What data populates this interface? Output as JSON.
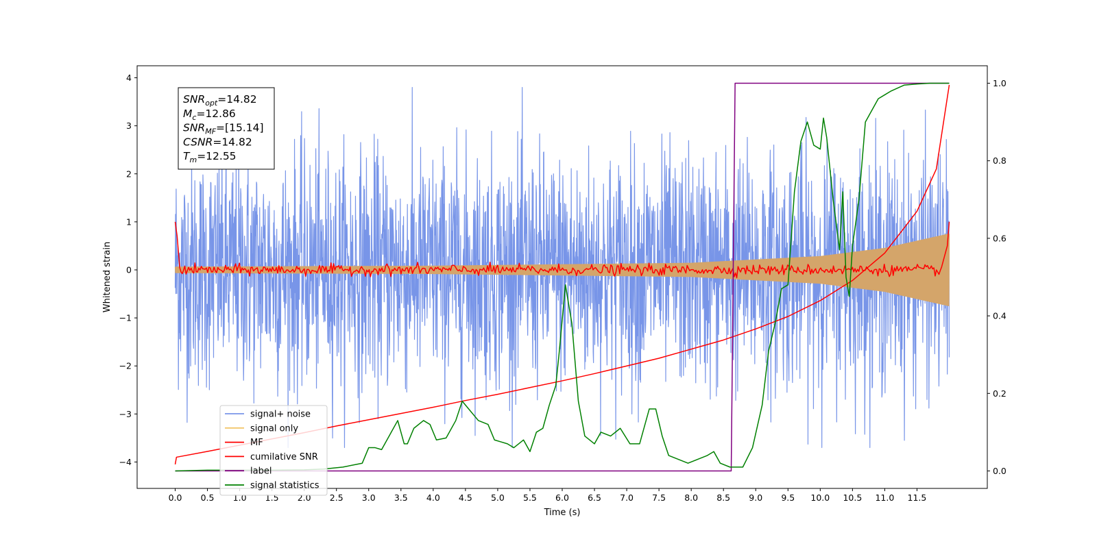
{
  "chart_data": {
    "type": "line",
    "title": "",
    "xlabel": "Time (s)",
    "ylabel": "Whitened strain",
    "y2label": "",
    "xlim": [
      -0.59,
      12.59
    ],
    "ylim": [
      -4.55,
      4.25
    ],
    "y2lim": [
      -0.045,
      1.045
    ],
    "x_ticks": [
      0.0,
      0.5,
      1.0,
      1.5,
      2.0,
      2.5,
      3.0,
      3.5,
      4.0,
      4.5,
      5.0,
      5.5,
      6.0,
      6.5,
      7.0,
      7.5,
      8.0,
      8.5,
      9.0,
      9.5,
      10.0,
      10.5,
      11.0,
      11.5
    ],
    "x_tick_labels": [
      "0.0",
      "0.5",
      "1.0",
      "1.5",
      "2.0",
      "2.5",
      "3.0",
      "3.5",
      "4.0",
      "4.5",
      "5.0",
      "5.5",
      "6.0",
      "6.5",
      "7.0",
      "7.5",
      "8.0",
      "8.5",
      "9.0",
      "9.5",
      "10.0",
      "10.5",
      "11.0",
      "11.5"
    ],
    "y_ticks": [
      4,
      3,
      2,
      1,
      0,
      -1,
      -2,
      -3,
      -4
    ],
    "y_tick_labels": [
      "4",
      "3",
      "2",
      "1",
      "0",
      "−1",
      "−2",
      "−3",
      "−4"
    ],
    "y2_ticks": [
      1.0,
      0.8,
      0.6,
      0.4,
      0.2,
      0.0
    ],
    "y2_tick_labels": [
      "1.0",
      "0.8",
      "0.6",
      "0.4",
      "0.2",
      "0.0"
    ],
    "grid": false,
    "legend_position": "bottom-left",
    "legend": [
      {
        "label": "signal+ noise",
        "color": "#7895e8"
      },
      {
        "label": "signal only",
        "color": "#f2c66a"
      },
      {
        "label": "MF",
        "color": "#ff0000"
      },
      {
        "label": "cumilative SNR",
        "color": "#ff0000"
      },
      {
        "label": "label",
        "color": "#800080"
      },
      {
        "label": "signal statistics",
        "color": "#008000"
      }
    ],
    "annotation": [
      {
        "base": "SNR",
        "sub": "opt",
        "rest": "=14.82"
      },
      {
        "base": "M",
        "sub": "c",
        "rest": "=12.86"
      },
      {
        "base": "SNR",
        "sub": "MF",
        "rest": "=[15.14]"
      },
      {
        "base": "CSNR",
        "sub": "",
        "rest": "=14.82"
      },
      {
        "base": "T",
        "sub": "m",
        "rest": "=12.55"
      }
    ],
    "series": [
      {
        "name": "signal+ noise",
        "axis": "left",
        "color": "#7895e8",
        "generated": "noise",
        "x_range": [
          0.0,
          12.0
        ],
        "approx_envelope": [
          -2.2,
          2.2
        ],
        "approx_extremes": [
          -3.7,
          3.8
        ]
      },
      {
        "name": "signal only",
        "axis": "left",
        "color": "#d4a56a",
        "generated": "chirp",
        "x_range": [
          0.0,
          12.0
        ],
        "amplitude_points": [
          [
            0.0,
            0.06
          ],
          [
            4.0,
            0.08
          ],
          [
            8.0,
            0.14
          ],
          [
            10.0,
            0.28
          ],
          [
            11.0,
            0.45
          ],
          [
            12.0,
            0.75
          ]
        ]
      },
      {
        "name": "MF",
        "axis": "left",
        "color": "#ff0000",
        "generated": "mf",
        "x_range": [
          0.0,
          12.0
        ],
        "approx_amplitude": 0.09,
        "start_value": 1.0,
        "end_value": 1.0
      },
      {
        "name": "cumilative SNR",
        "axis": "left",
        "color": "#ff0000",
        "points": [
          [
            0.0,
            -4.05
          ],
          [
            0.02,
            -3.9
          ],
          [
            0.5,
            -3.78
          ],
          [
            1.0,
            -3.65
          ],
          [
            1.5,
            -3.52
          ],
          [
            2.0,
            -3.39
          ],
          [
            2.5,
            -3.25
          ],
          [
            3.0,
            -3.12
          ],
          [
            3.5,
            -2.99
          ],
          [
            4.0,
            -2.86
          ],
          [
            4.5,
            -2.72
          ],
          [
            5.0,
            -2.59
          ],
          [
            5.5,
            -2.45
          ],
          [
            6.0,
            -2.31
          ],
          [
            6.5,
            -2.16
          ],
          [
            7.0,
            -2.0
          ],
          [
            7.5,
            -1.84
          ],
          [
            8.0,
            -1.65
          ],
          [
            8.5,
            -1.46
          ],
          [
            9.0,
            -1.23
          ],
          [
            9.5,
            -0.97
          ],
          [
            10.0,
            -0.64
          ],
          [
            10.5,
            -0.22
          ],
          [
            11.0,
            0.35
          ],
          [
            11.5,
            1.22
          ],
          [
            11.8,
            2.1
          ],
          [
            12.0,
            3.85
          ]
        ]
      },
      {
        "name": "label",
        "axis": "right",
        "color": "#800080",
        "points": [
          [
            0.0,
            0.0
          ],
          [
            8.62,
            0.0
          ],
          [
            8.68,
            1.0
          ],
          [
            12.0,
            1.0
          ]
        ]
      },
      {
        "name": "signal statistics",
        "axis": "right",
        "color": "#008000",
        "points": [
          [
            0.0,
            0.0
          ],
          [
            0.5,
            0.002
          ],
          [
            1.0,
            0.002
          ],
          [
            1.5,
            0.002
          ],
          [
            2.0,
            0.003
          ],
          [
            2.3,
            0.005
          ],
          [
            2.6,
            0.01
          ],
          [
            2.9,
            0.02
          ],
          [
            3.0,
            0.06
          ],
          [
            3.1,
            0.06
          ],
          [
            3.2,
            0.055
          ],
          [
            3.35,
            0.1
          ],
          [
            3.45,
            0.13
          ],
          [
            3.55,
            0.07
          ],
          [
            3.6,
            0.07
          ],
          [
            3.7,
            0.11
          ],
          [
            3.85,
            0.13
          ],
          [
            3.95,
            0.12
          ],
          [
            4.05,
            0.08
          ],
          [
            4.2,
            0.085
          ],
          [
            4.35,
            0.13
          ],
          [
            4.45,
            0.18
          ],
          [
            4.55,
            0.16
          ],
          [
            4.7,
            0.13
          ],
          [
            4.85,
            0.12
          ],
          [
            4.95,
            0.08
          ],
          [
            5.05,
            0.075
          ],
          [
            5.15,
            0.07
          ],
          [
            5.25,
            0.06
          ],
          [
            5.4,
            0.08
          ],
          [
            5.5,
            0.05
          ],
          [
            5.6,
            0.1
          ],
          [
            5.7,
            0.11
          ],
          [
            5.8,
            0.17
          ],
          [
            5.9,
            0.22
          ],
          [
            5.95,
            0.3
          ],
          [
            6.05,
            0.48
          ],
          [
            6.15,
            0.38
          ],
          [
            6.25,
            0.18
          ],
          [
            6.35,
            0.09
          ],
          [
            6.5,
            0.07
          ],
          [
            6.6,
            0.1
          ],
          [
            6.75,
            0.09
          ],
          [
            6.9,
            0.11
          ],
          [
            7.05,
            0.07
          ],
          [
            7.2,
            0.07
          ],
          [
            7.35,
            0.16
          ],
          [
            7.45,
            0.16
          ],
          [
            7.55,
            0.09
          ],
          [
            7.65,
            0.04
          ],
          [
            7.8,
            0.03
          ],
          [
            7.95,
            0.02
          ],
          [
            8.1,
            0.03
          ],
          [
            8.25,
            0.04
          ],
          [
            8.35,
            0.05
          ],
          [
            8.45,
            0.02
          ],
          [
            8.6,
            0.01
          ],
          [
            8.8,
            0.01
          ],
          [
            8.95,
            0.06
          ],
          [
            9.1,
            0.17
          ],
          [
            9.2,
            0.31
          ],
          [
            9.3,
            0.38
          ],
          [
            9.4,
            0.47
          ],
          [
            9.5,
            0.48
          ],
          [
            9.6,
            0.72
          ],
          [
            9.7,
            0.85
          ],
          [
            9.8,
            0.9
          ],
          [
            9.9,
            0.84
          ],
          [
            10.0,
            0.83
          ],
          [
            10.05,
            0.91
          ],
          [
            10.1,
            0.86
          ],
          [
            10.2,
            0.7
          ],
          [
            10.3,
            0.57
          ],
          [
            10.35,
            0.72
          ],
          [
            10.4,
            0.5
          ],
          [
            10.45,
            0.45
          ],
          [
            10.5,
            0.58
          ],
          [
            10.6,
            0.7
          ],
          [
            10.7,
            0.9
          ],
          [
            10.8,
            0.93
          ],
          [
            10.9,
            0.96
          ],
          [
            11.0,
            0.97
          ],
          [
            11.1,
            0.98
          ],
          [
            11.3,
            0.995
          ],
          [
            11.5,
            0.998
          ],
          [
            11.7,
            1.0
          ],
          [
            11.9,
            1.0
          ],
          [
            12.0,
            1.0
          ]
        ]
      }
    ]
  }
}
